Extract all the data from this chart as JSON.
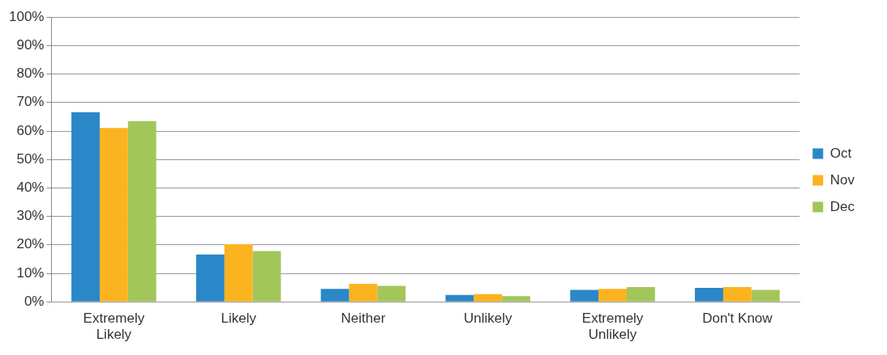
{
  "chart_data": {
    "type": "bar",
    "categories": [
      "Extremely Likely",
      "Likely",
      "Neither",
      "Unlikely",
      "Extremely Unlikely",
      "Don't Know"
    ],
    "series": [
      {
        "name": "Oct",
        "color": "#2a87c8",
        "values": [
          66.6,
          16.6,
          4.5,
          2.4,
          4.2,
          4.9
        ]
      },
      {
        "name": "Nov",
        "color": "#fbb31f",
        "values": [
          61.1,
          20.2,
          6.3,
          2.7,
          4.5,
          5.2
        ]
      },
      {
        "name": "Dec",
        "color": "#a3c65a",
        "values": [
          63.5,
          17.8,
          5.6,
          2.0,
          5.2,
          4.2
        ]
      }
    ],
    "ylim": [
      0,
      100
    ],
    "yticks": [
      {
        "value": 0,
        "label": "0%"
      },
      {
        "value": 10,
        "label": "10%"
      },
      {
        "value": 20,
        "label": "20%"
      },
      {
        "value": 30,
        "label": "30%"
      },
      {
        "value": 40,
        "label": "40%"
      },
      {
        "value": 50,
        "label": "50%"
      },
      {
        "value": 60,
        "label": "60%"
      },
      {
        "value": 70,
        "label": "70%"
      },
      {
        "value": 80,
        "label": "80%"
      },
      {
        "value": 90,
        "label": "90%"
      },
      {
        "value": 100,
        "label": "100%"
      }
    ],
    "grid": "y",
    "legend": "right"
  }
}
